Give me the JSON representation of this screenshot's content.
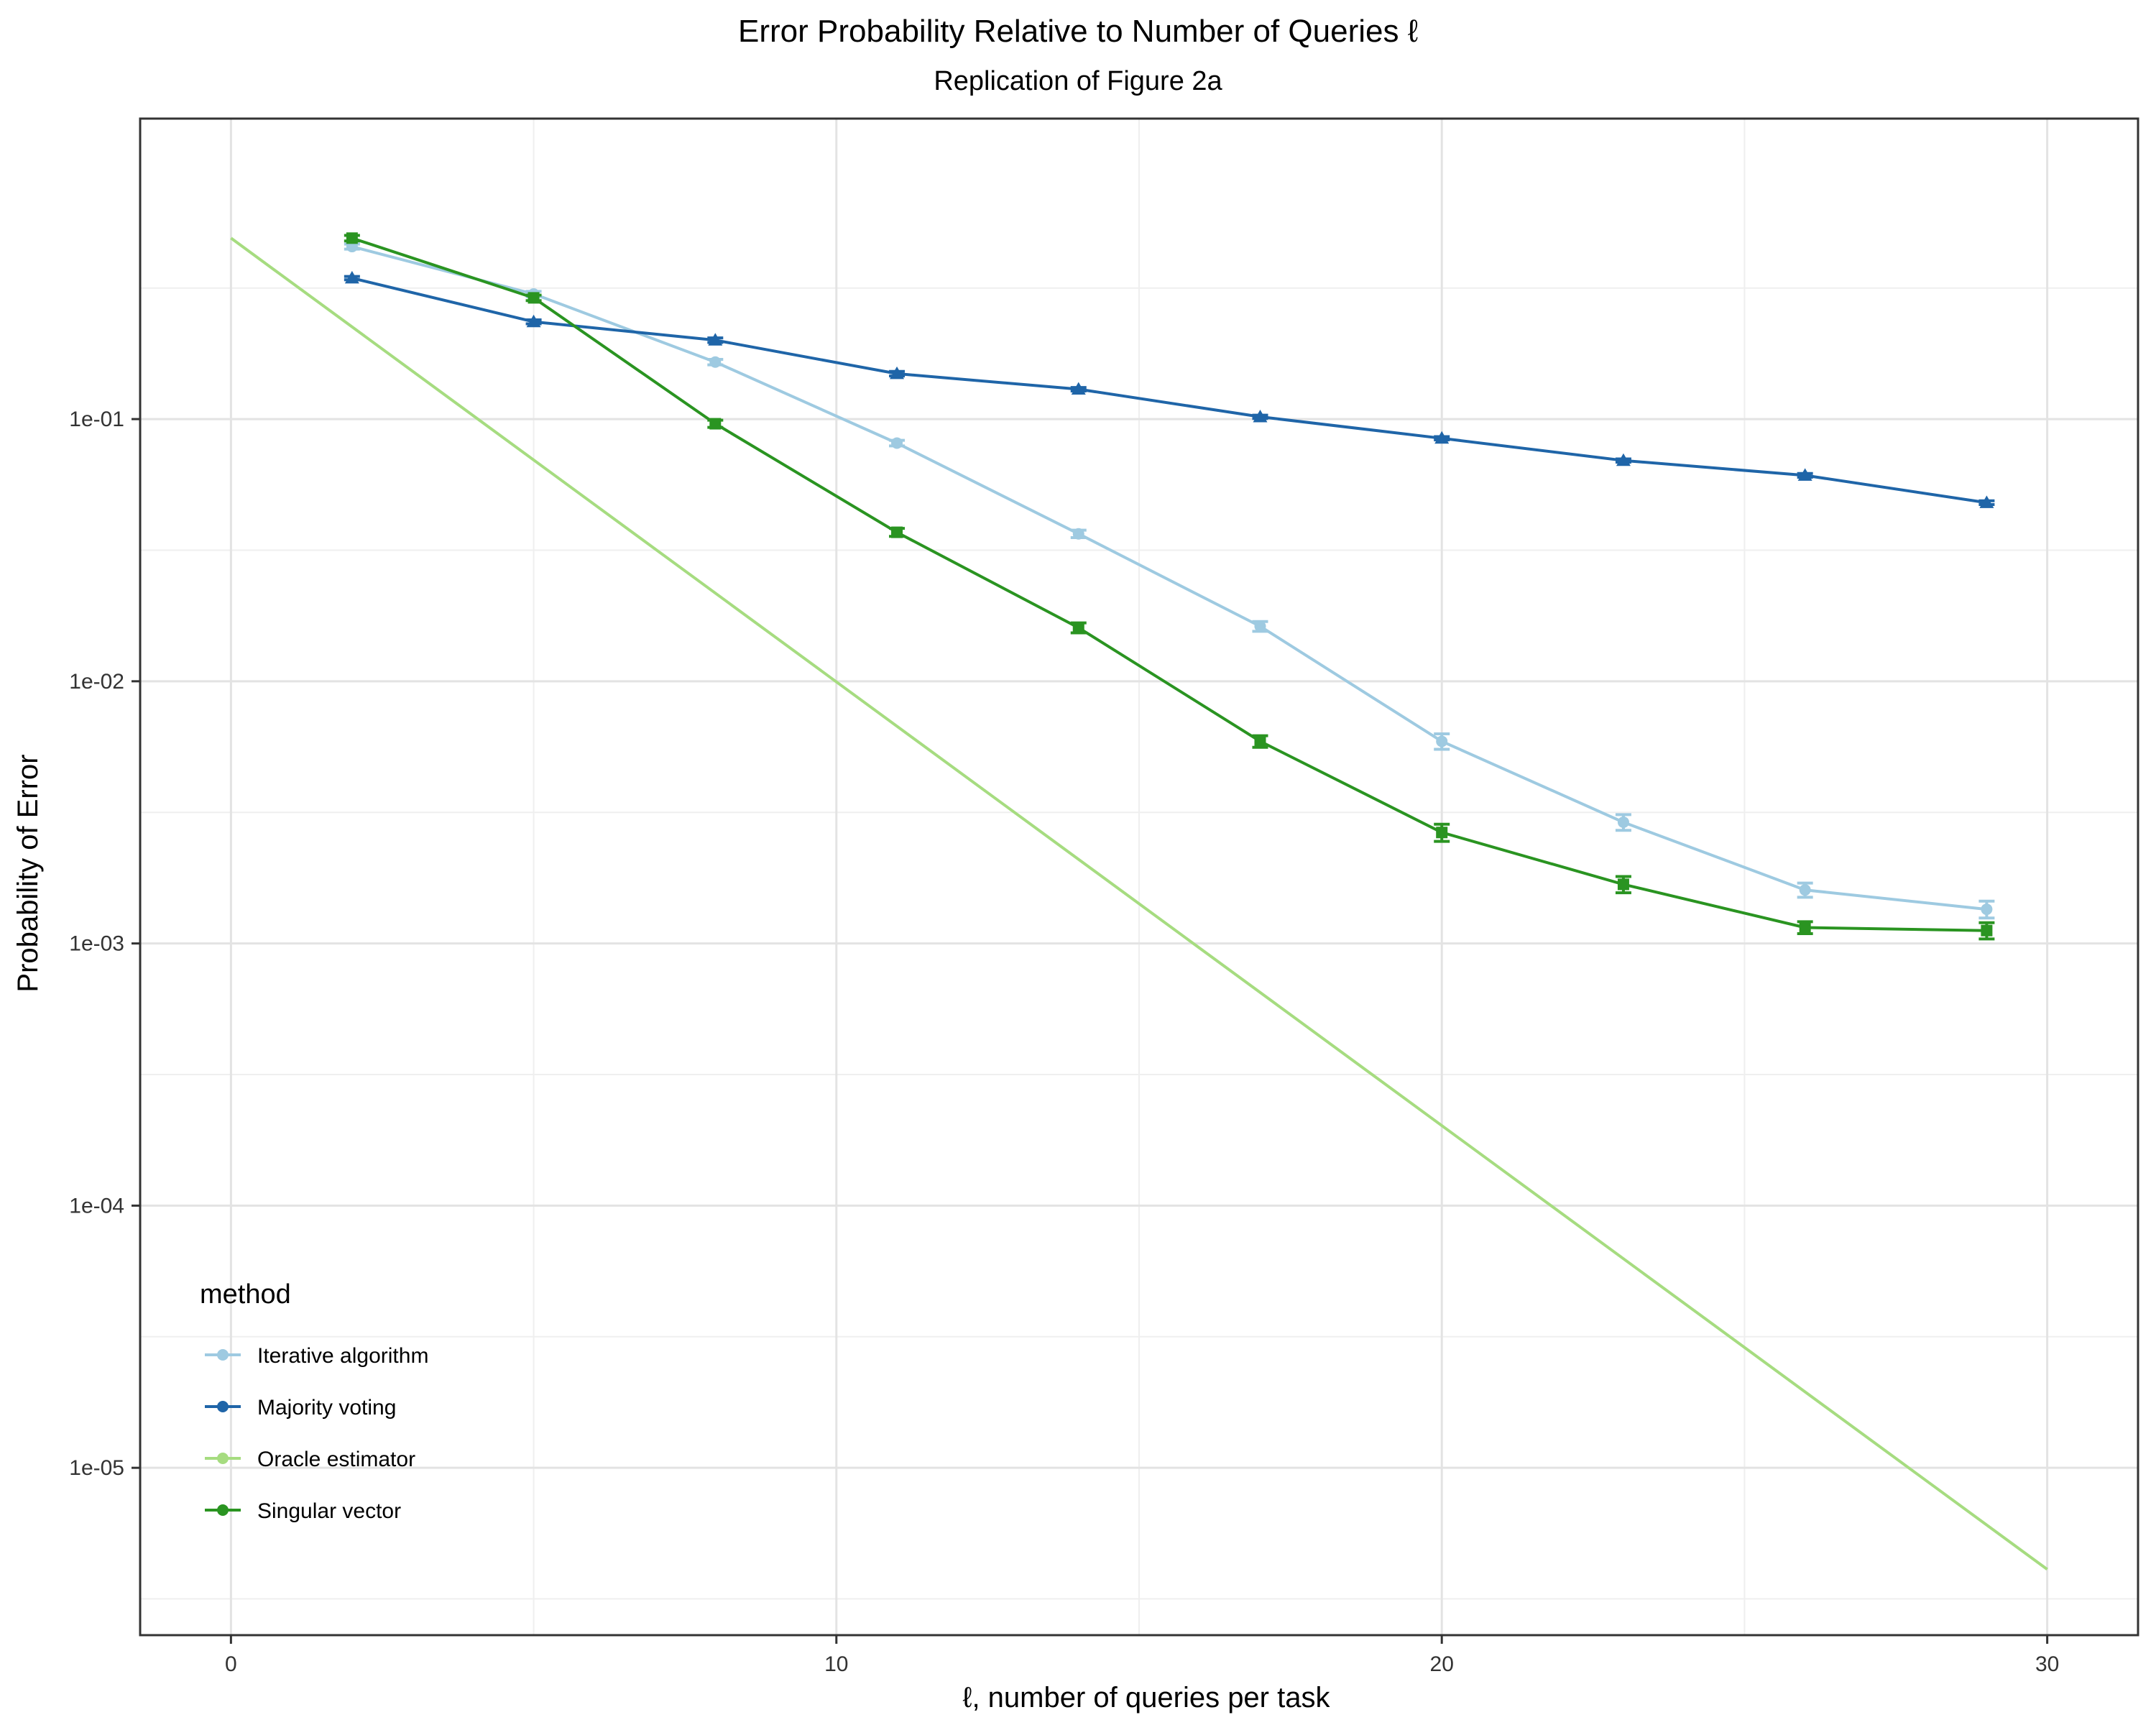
{
  "chart_data": {
    "type": "line",
    "title": "Error Probability Relative to Number of Queries ℓ",
    "subtitle": "Replication of Figure 2a",
    "xlabel": "ℓ, number of queries per task",
    "ylabel": "Probability of Error",
    "xlim": [
      -1.5,
      31.5
    ],
    "ylim": [
      2.3e-06,
      1.4
    ],
    "yscale": "log",
    "grid": true,
    "x_ticks": [
      0,
      10,
      20,
      30
    ],
    "x_tick_labels": [
      "0",
      "10",
      "20",
      "30"
    ],
    "y_ticks": [
      1e-05,
      0.0001,
      0.001,
      0.01,
      0.1
    ],
    "y_tick_labels": [
      "1e-05",
      "1e-04",
      "1e-03",
      "1e-02",
      "1e-01"
    ],
    "legend": {
      "title": "method",
      "position": "bottom-left",
      "entries": [
        "Iterative algorithm",
        "Majority voting",
        "Oracle estimator",
        "Singular vector"
      ]
    },
    "series": [
      {
        "name": "Iterative algorithm",
        "color": "#9ecae1",
        "marker": "circle",
        "x": [
          2,
          5,
          8,
          11,
          14,
          17,
          20,
          23,
          26,
          29
        ],
        "y": [
          0.455,
          0.3,
          0.165,
          0.081,
          0.0365,
          0.0162,
          0.0059,
          0.0029,
          0.0016,
          0.00135
        ],
        "err": [
          0.01,
          0.007,
          0.004,
          0.002,
          0.0012,
          0.0007,
          0.0004,
          0.0002,
          0.0001,
          0.0001
        ]
      },
      {
        "name": "Majority voting",
        "color": "#1f65a8",
        "marker": "triangle",
        "x": [
          2,
          5,
          8,
          11,
          14,
          17,
          20,
          23,
          26,
          29
        ],
        "y": [
          0.345,
          0.235,
          0.2,
          0.149,
          0.13,
          0.102,
          0.0845,
          0.0695,
          0.061,
          0.048
        ],
        "err": [
          0.005,
          0.004,
          0.004,
          0.003,
          0.002,
          0.0015,
          0.0012,
          0.001,
          0.001,
          0.0008
        ]
      },
      {
        "name": "Oracle estimator",
        "color": "#a6dc80",
        "marker": "none",
        "x": [
          0,
          30
        ],
        "y": [
          0.49,
          4.1e-06
        ]
      },
      {
        "name": "Singular vector",
        "color": "#2a9421",
        "marker": "square",
        "x": [
          2,
          5,
          8,
          11,
          14,
          17,
          20,
          23,
          26,
          29
        ],
        "y": [
          0.49,
          0.29,
          0.096,
          0.037,
          0.016,
          0.0059,
          0.00265,
          0.00168,
          0.00115,
          0.00112
        ],
        "err": [
          0.012,
          0.007,
          0.003,
          0.0013,
          0.0007,
          0.0003,
          0.0002,
          0.00012,
          6e-05,
          8e-05
        ]
      }
    ]
  }
}
